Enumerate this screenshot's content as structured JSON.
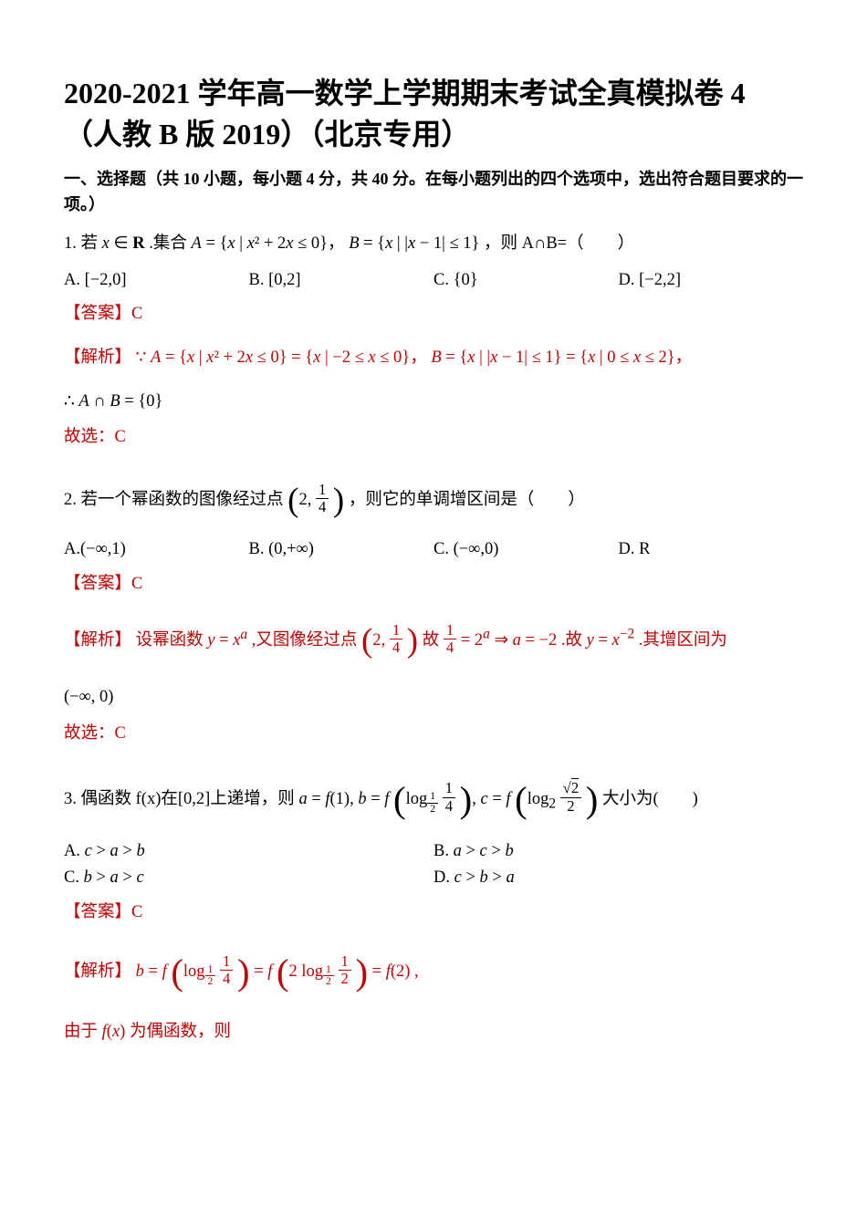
{
  "title": "2020-2021 学年高一数学上学期期末考试全真模拟卷 4（人教 B 版 2019）（北京专用）",
  "section_header": "一、选择题（共 10 小题，每小题 4 分，共 40 分。在每小题列出的四个选项中，选出符合题目要求的一项。）",
  "q1": {
    "stem_prefix": "1. 若 ",
    "stem_x": "x ∈ R",
    "stem_mid1": " .集合 ",
    "setA": "A = { x | x² + 2x ≤ 0 }",
    "comma": "，",
    "setB": "B = { x | |x − 1| ≤ 1 }",
    "stem_tail": "，则 A∩B=（　　）",
    "options": {
      "A": "A. [−2,0]",
      "B": "B. [0,2]",
      "C": "C. {0}",
      "D": "D. [−2,2]"
    },
    "answer_label": "【答案】C",
    "analysis_label": "【解析】",
    "analysis_line1_pre": "∵ ",
    "analysis_line1_a": "A = { x | x² + 2x ≤ 0 } = { x | −2 ≤ x ≤ 0 }",
    "analysis_line1_mid": "，",
    "analysis_line1_b": "B = { x | |x − 1| ≤ 1 } = { x | 0 ≤ x ≤ 2 }",
    "analysis_line1_tail": "，",
    "analysis_line2": "∴ A ∩ B = {0}",
    "conclusion": "故选：C"
  },
  "q2": {
    "stem_prefix": "2. 若一个幂函数的图像经过点",
    "point_label_left": "",
    "point": "( 2, 1/4 )",
    "stem_tail": "，则它的单调增区间是（　　）",
    "options": {
      "A": "A.(−∞,1)",
      "B": "B. (0,+∞)",
      "C": "C. (−∞,0)",
      "D": "D. R"
    },
    "answer_label": "【答案】C",
    "analysis_label": "【解析】",
    "analysis_text_1": "设幂函数 ",
    "analysis_fn": "y = xᵃ",
    "analysis_text_2": " ,又图像经过点",
    "analysis_text_3": "故",
    "deriv": "1/4 = 2ᵃ ⇒ a = −2",
    "analysis_text_4": " .故 ",
    "result_fn": "y = x⁻²",
    "analysis_text_5": " .其增区间为",
    "interval": "(−∞, 0)",
    "conclusion": "故选：C"
  },
  "q3": {
    "stem_prefix": "3. 偶函数 f(x)在[0,2]上递增，则 ",
    "eq_a": "a = f(1), ",
    "eq_b_pre": "b = f",
    "eq_c_pre": "c = f",
    "stem_tail": "大小为(　　)",
    "options": {
      "A": "A. c > a > b",
      "B": "B. a > c > b",
      "C": "C. b > a > c",
      "D": "D. c > b > a"
    },
    "answer_label": "【答案】C",
    "analysis_label": "【解析】",
    "analysis_b_pre": "b = f",
    "analysis_b_eq": " = f",
    "analysis_b_tail": " = f(2) ,",
    "analysis_line2_pre": "由于 ",
    "analysis_line2_fx": "f(x)",
    "analysis_line2_tail": " 为偶函数，则"
  },
  "colors": {
    "text": "#000000",
    "accent": "#c00000",
    "background": "#ffffff"
  }
}
